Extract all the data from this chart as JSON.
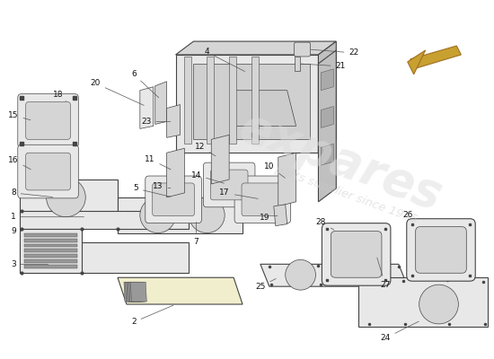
{
  "background_color": "#ffffff",
  "line_color": "#444444",
  "part_fill_light": "#e8e8e8",
  "part_fill_mid": "#d5d5d5",
  "part_fill_dark": "#c0c0c0",
  "part_fill_yellow": "#f0eecc",
  "louver_fill": "#aaaaaa",
  "arrow_color": "#c8a030",
  "watermark_color": "#dddddd",
  "label_fontsize": 6.5,
  "title": ""
}
